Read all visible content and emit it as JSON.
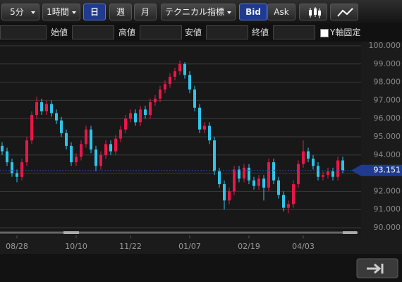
{
  "toolbar": {
    "interval_minutes": "5分",
    "interval_hours": "1時間",
    "periods": [
      "日",
      "週",
      "月"
    ],
    "technical": "テクニカル指標",
    "quote": [
      "Bid",
      "Ask"
    ]
  },
  "ohlc_bar": {
    "labels": [
      "始値",
      "高値",
      "安値",
      "終値"
    ],
    "y_fixed": "Y軸固定"
  },
  "chart_data": {
    "type": "candlestick",
    "categories": [
      null,
      null,
      null,
      "08/28",
      null,
      null,
      null,
      null,
      null,
      null,
      null,
      null,
      null,
      null,
      null,
      "10/10",
      null,
      null,
      null,
      null,
      null,
      null,
      null,
      null,
      null,
      null,
      "11/22",
      null,
      null,
      null,
      null,
      null,
      null,
      null,
      null,
      null,
      null,
      null,
      "01/07",
      null,
      null,
      null,
      null,
      null,
      null,
      null,
      null,
      null,
      null,
      null,
      "02/19",
      null,
      null,
      null,
      null,
      null,
      null,
      null,
      null,
      null,
      null,
      "04/03",
      null,
      null,
      null,
      null,
      null,
      null,
      null,
      null
    ],
    "open": [
      94.5,
      94.2,
      93.6,
      93.0,
      92.8,
      93.6,
      94.8,
      96.2,
      96.9,
      96.4,
      96.8,
      96.3,
      95.9,
      95.2,
      94.5,
      93.6,
      93.9,
      94.6,
      95.4,
      94.3,
      93.4,
      94.0,
      94.6,
      94.2,
      94.9,
      95.4,
      96.0,
      96.3,
      95.8,
      96.5,
      96.2,
      96.9,
      97.1,
      97.6,
      97.9,
      98.3,
      98.6,
      99.0,
      98.4,
      97.6,
      96.6,
      95.4,
      95.6,
      94.8,
      93.1,
      92.4,
      91.5,
      92.0,
      93.2,
      92.7,
      93.3,
      92.6,
      92.3,
      92.7,
      92.2,
      93.6,
      92.6,
      91.8,
      91.1,
      91.3,
      92.4,
      93.5,
      94.2,
      93.8,
      93.4,
      92.8,
      92.9,
      93.1,
      92.8,
      93.7
    ],
    "high": [
      94.7,
      94.4,
      93.8,
      93.2,
      93.8,
      95.0,
      96.4,
      97.2,
      97.1,
      97.0,
      97.0,
      96.5,
      96.1,
      95.4,
      94.7,
      94.1,
      94.8,
      95.6,
      95.6,
      94.5,
      94.2,
      94.8,
      94.8,
      95.1,
      95.6,
      96.2,
      96.5,
      96.5,
      96.7,
      96.7,
      97.1,
      97.3,
      97.8,
      98.1,
      98.5,
      98.8,
      99.2,
      99.1,
      98.6,
      97.8,
      96.8,
      95.8,
      95.8,
      95.0,
      93.3,
      92.6,
      92.2,
      93.4,
      93.4,
      93.5,
      93.5,
      92.8,
      92.9,
      92.9,
      93.8,
      93.8,
      92.8,
      92.0,
      91.5,
      92.6,
      93.7,
      94.8,
      94.4,
      94.0,
      93.6,
      93.1,
      93.3,
      93.3,
      93.9,
      93.9
    ],
    "low": [
      94.0,
      93.4,
      92.8,
      92.5,
      92.6,
      93.4,
      94.6,
      96.0,
      96.2,
      96.2,
      96.1,
      95.7,
      95.0,
      94.3,
      93.4,
      93.4,
      93.7,
      94.4,
      94.1,
      93.1,
      93.2,
      93.8,
      94.0,
      94.0,
      94.7,
      95.2,
      95.8,
      95.6,
      95.6,
      96.0,
      96.0,
      96.7,
      96.9,
      97.4,
      97.7,
      98.1,
      98.4,
      98.2,
      97.4,
      96.4,
      95.2,
      95.2,
      94.6,
      92.9,
      92.2,
      91.0,
      91.3,
      91.8,
      92.5,
      92.5,
      92.4,
      92.1,
      92.1,
      91.5,
      92.0,
      92.4,
      91.6,
      90.9,
      90.8,
      91.1,
      92.2,
      93.3,
      93.6,
      93.2,
      92.6,
      92.6,
      92.7,
      92.6,
      92.6,
      93.0
    ],
    "close": [
      94.2,
      93.6,
      93.0,
      92.8,
      93.6,
      94.8,
      96.2,
      96.9,
      96.4,
      96.8,
      96.3,
      95.9,
      95.2,
      94.5,
      93.6,
      93.9,
      94.6,
      95.4,
      94.3,
      93.4,
      94.0,
      94.6,
      94.2,
      94.9,
      95.4,
      96.0,
      96.3,
      95.8,
      96.5,
      96.2,
      96.9,
      97.1,
      97.6,
      97.9,
      98.3,
      98.6,
      99.0,
      98.4,
      97.6,
      96.6,
      95.4,
      95.6,
      94.8,
      93.1,
      92.4,
      91.5,
      92.0,
      93.2,
      92.7,
      93.3,
      92.6,
      92.3,
      92.7,
      92.2,
      93.6,
      92.6,
      91.8,
      91.1,
      91.3,
      92.4,
      93.5,
      94.2,
      93.8,
      93.4,
      92.8,
      92.9,
      93.1,
      92.8,
      93.7,
      93.15
    ],
    "up_color": "#e8174a",
    "down_color": "#2fc4ea",
    "ylim": [
      89.73,
      100.31
    ],
    "yticks": [
      {
        "value": 90,
        "label": "90.000"
      },
      {
        "value": 91,
        "label": "91.000"
      },
      {
        "value": 92,
        "label": "92.000"
      },
      {
        "value": 93,
        "label": "93.000"
      },
      {
        "value": 94,
        "label": "94.000"
      },
      {
        "value": 95,
        "label": "95.000"
      },
      {
        "value": 96,
        "label": "96.000"
      },
      {
        "value": 97,
        "label": "97.000"
      },
      {
        "value": 98,
        "label": "98.000"
      },
      {
        "value": 99,
        "label": "99.000"
      },
      {
        "value": 100,
        "label": "100.000"
      }
    ],
    "grid": true,
    "last_price": 93.151
  }
}
